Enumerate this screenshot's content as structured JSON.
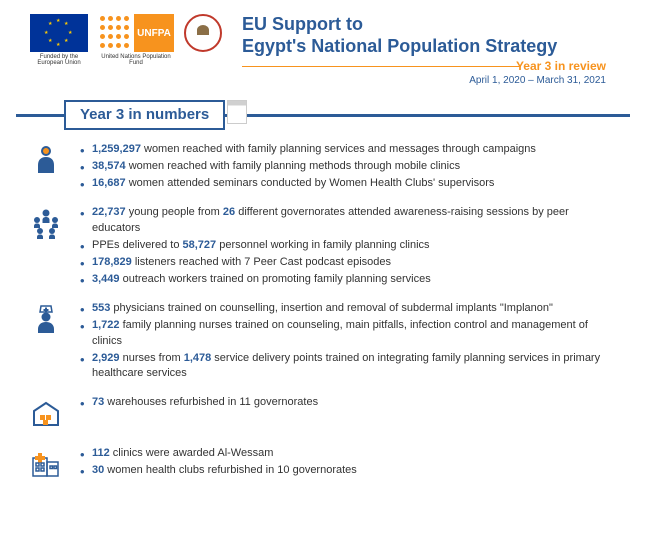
{
  "colors": {
    "primary": "#2c5b97",
    "accent": "#f7931e",
    "eu_blue": "#003399",
    "eu_gold": "#ffcc00",
    "text": "#333333"
  },
  "header": {
    "eu_caption": "Funded by the European Union",
    "unfpa_caption": "United Nations Population Fund",
    "unfpa_label": "UNFPA",
    "title_line1": "EU Support to",
    "title_line2": "Egypt's National Population Strategy",
    "subtitle": "Year 3 in review",
    "date_range": "April 1, 2020 – March 31, 2021"
  },
  "banner": "Year 3 in numbers",
  "sections": [
    {
      "icon": "woman",
      "items": [
        {
          "nums": [
            "1,259,297"
          ],
          "text": "{0} women reached with family planning services and messages through campaigns"
        },
        {
          "nums": [
            "38,574"
          ],
          "text": "{0} women reached with family planning methods through mobile clinics"
        },
        {
          "nums": [
            "16,687"
          ],
          "text": "{0} women attended seminars conducted by Women Health Clubs' supervisors"
        }
      ]
    },
    {
      "icon": "group",
      "items": [
        {
          "nums": [
            "22,737",
            "26"
          ],
          "text": "{0} young people from {1} different governorates attended awareness-raising sessions by peer educators"
        },
        {
          "nums": [
            "58,727"
          ],
          "text": "PPEs delivered to {0} personnel working in family planning clinics"
        },
        {
          "nums": [
            "178,829"
          ],
          "text": "{0} listeners reached with 7 Peer Cast podcast episodes"
        },
        {
          "nums": [
            "3,449"
          ],
          "text": "{0} outreach workers trained on promoting family planning services"
        }
      ]
    },
    {
      "icon": "nurse",
      "items": [
        {
          "nums": [
            "553"
          ],
          "text": "{0} physicians trained on counselling, insertion and removal of subdermal implants \"Implanon\""
        },
        {
          "nums": [
            "1,722"
          ],
          "text": "{0} family planning nurses trained on counseling, main pitfalls, infection control and management of clinics"
        },
        {
          "nums": [
            "2,929",
            "1,478"
          ],
          "text": "{0} nurses from {1} service delivery points trained on integrating family planning services in primary healthcare services"
        }
      ]
    },
    {
      "icon": "warehouse",
      "items": [
        {
          "nums": [
            "73"
          ],
          "text": "{0} warehouses refurbished in 11 governorates"
        }
      ]
    },
    {
      "icon": "clinic",
      "items": [
        {
          "nums": [
            "112"
          ],
          "text": "{0} clinics were awarded Al-Wessam"
        },
        {
          "nums": [
            "30"
          ],
          "text": "{0} women health clubs refurbished in 10 governorates"
        }
      ]
    }
  ]
}
